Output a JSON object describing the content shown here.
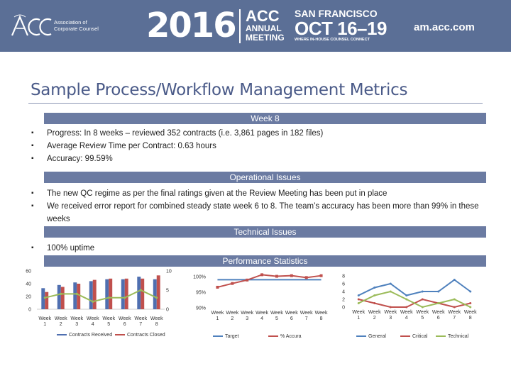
{
  "banner": {
    "assoc_line1": "Association of",
    "assoc_line2": "Corporate Counsel",
    "year": "2016",
    "acc": "ACC",
    "annual": "ANNUAL",
    "meeting": "MEETING",
    "city": "SAN FRANCISCO",
    "dates": "OCT 16–19",
    "tagline": "WHERE IN-HOUSE COUNSEL CONNECT",
    "site": "am.acc.com",
    "colors": {
      "banner_bg": "#5b6f96",
      "text": "#ffffff"
    }
  },
  "slide": {
    "title": "Sample Process/Workflow Management Metrics",
    "sections": [
      {
        "header": "Week 8",
        "bullets": [
          "Progress: In 8 weeks – reviewed 352 contracts (i.e. 3,861 pages in 182 files)",
          "Average Review Time per Contract: 0.63 hours",
          "Accuracy: 99.59%"
        ]
      },
      {
        "header": "Operational Issues",
        "bullets": [
          "The new QC regime as per the final ratings given at the Review Meeting has been put in place",
          "We received error report for combined steady state week 6 to 8. The team’s accuracy has been more than 99% in these weeks"
        ]
      },
      {
        "header": "Technical Issues",
        "bullets": [
          "100% uptime"
        ]
      },
      {
        "header": "Performance Statistics",
        "bullets": []
      }
    ],
    "colors": {
      "section_bg": "#6b7ba2",
      "title": "#4a5a88"
    }
  },
  "chart_data": [
    {
      "type": "bar",
      "categories": [
        "Week 1",
        "Week 2",
        "Week 3",
        "Week 4",
        "Week 5",
        "Week 6",
        "Week 7",
        "Week 8"
      ],
      "series": [
        {
          "name": "Contracts Received",
          "values": [
            33,
            38,
            42,
            44,
            47,
            47,
            51,
            47
          ],
          "color": "#4f6fb0"
        },
        {
          "name": "Contracts Closed",
          "values": [
            27,
            35,
            40,
            46,
            48,
            48,
            48,
            53
          ],
          "color": "#c0504d"
        },
        {
          "name": "",
          "values": [
            3,
            4,
            4,
            2,
            3,
            3,
            5,
            3
          ],
          "type": "line",
          "axis": "right",
          "color": "#9bbb59"
        }
      ],
      "yticks_left": [
        "60",
        "40",
        "20",
        "0"
      ],
      "ylim_left": [
        0,
        60
      ],
      "yticks_right": [
        "10",
        "5",
        "0"
      ],
      "ylim_right": [
        0,
        10
      ],
      "legend": "bottom"
    },
    {
      "type": "line",
      "categories": [
        "Week 1",
        "Week 2",
        "Week 3",
        "Week 4",
        "Week 5",
        "Week 6",
        "Week 7",
        "Week 8"
      ],
      "series": [
        {
          "name": "Target",
          "values": [
            99,
            99,
            99,
            99,
            99,
            99,
            99,
            99
          ],
          "color": "#4f81bd"
        },
        {
          "name": "% Accura",
          "values": [
            96.6,
            97.8,
            98.9,
            100.6,
            100.1,
            100.3,
            99.7,
            100.3
          ],
          "color": "#c0504d"
        }
      ],
      "yticks": [
        "100%",
        "95%",
        "90%"
      ],
      "ylim": [
        90,
        100
      ],
      "legend": "bottom"
    },
    {
      "type": "line",
      "categories": [
        "Week 1",
        "Week 2",
        "Week 3",
        "Week 4",
        "Week 5",
        "Week 6",
        "Week 7",
        "Week 8"
      ],
      "series": [
        {
          "name": "General",
          "values": [
            3,
            5,
            6,
            3,
            4,
            4,
            7,
            4
          ],
          "color": "#4f81bd"
        },
        {
          "name": "Critical",
          "values": [
            2,
            1,
            0,
            0,
            2,
            1,
            0,
            1
          ],
          "color": "#c0504d"
        },
        {
          "name": "Technical",
          "values": [
            1,
            3,
            4,
            2,
            0,
            1,
            2,
            0
          ],
          "color": "#9bbb59"
        }
      ],
      "yticks": [
        "8",
        "6",
        "4",
        "2",
        "0"
      ],
      "ylim": [
        0,
        8
      ],
      "legend": "bottom"
    }
  ]
}
